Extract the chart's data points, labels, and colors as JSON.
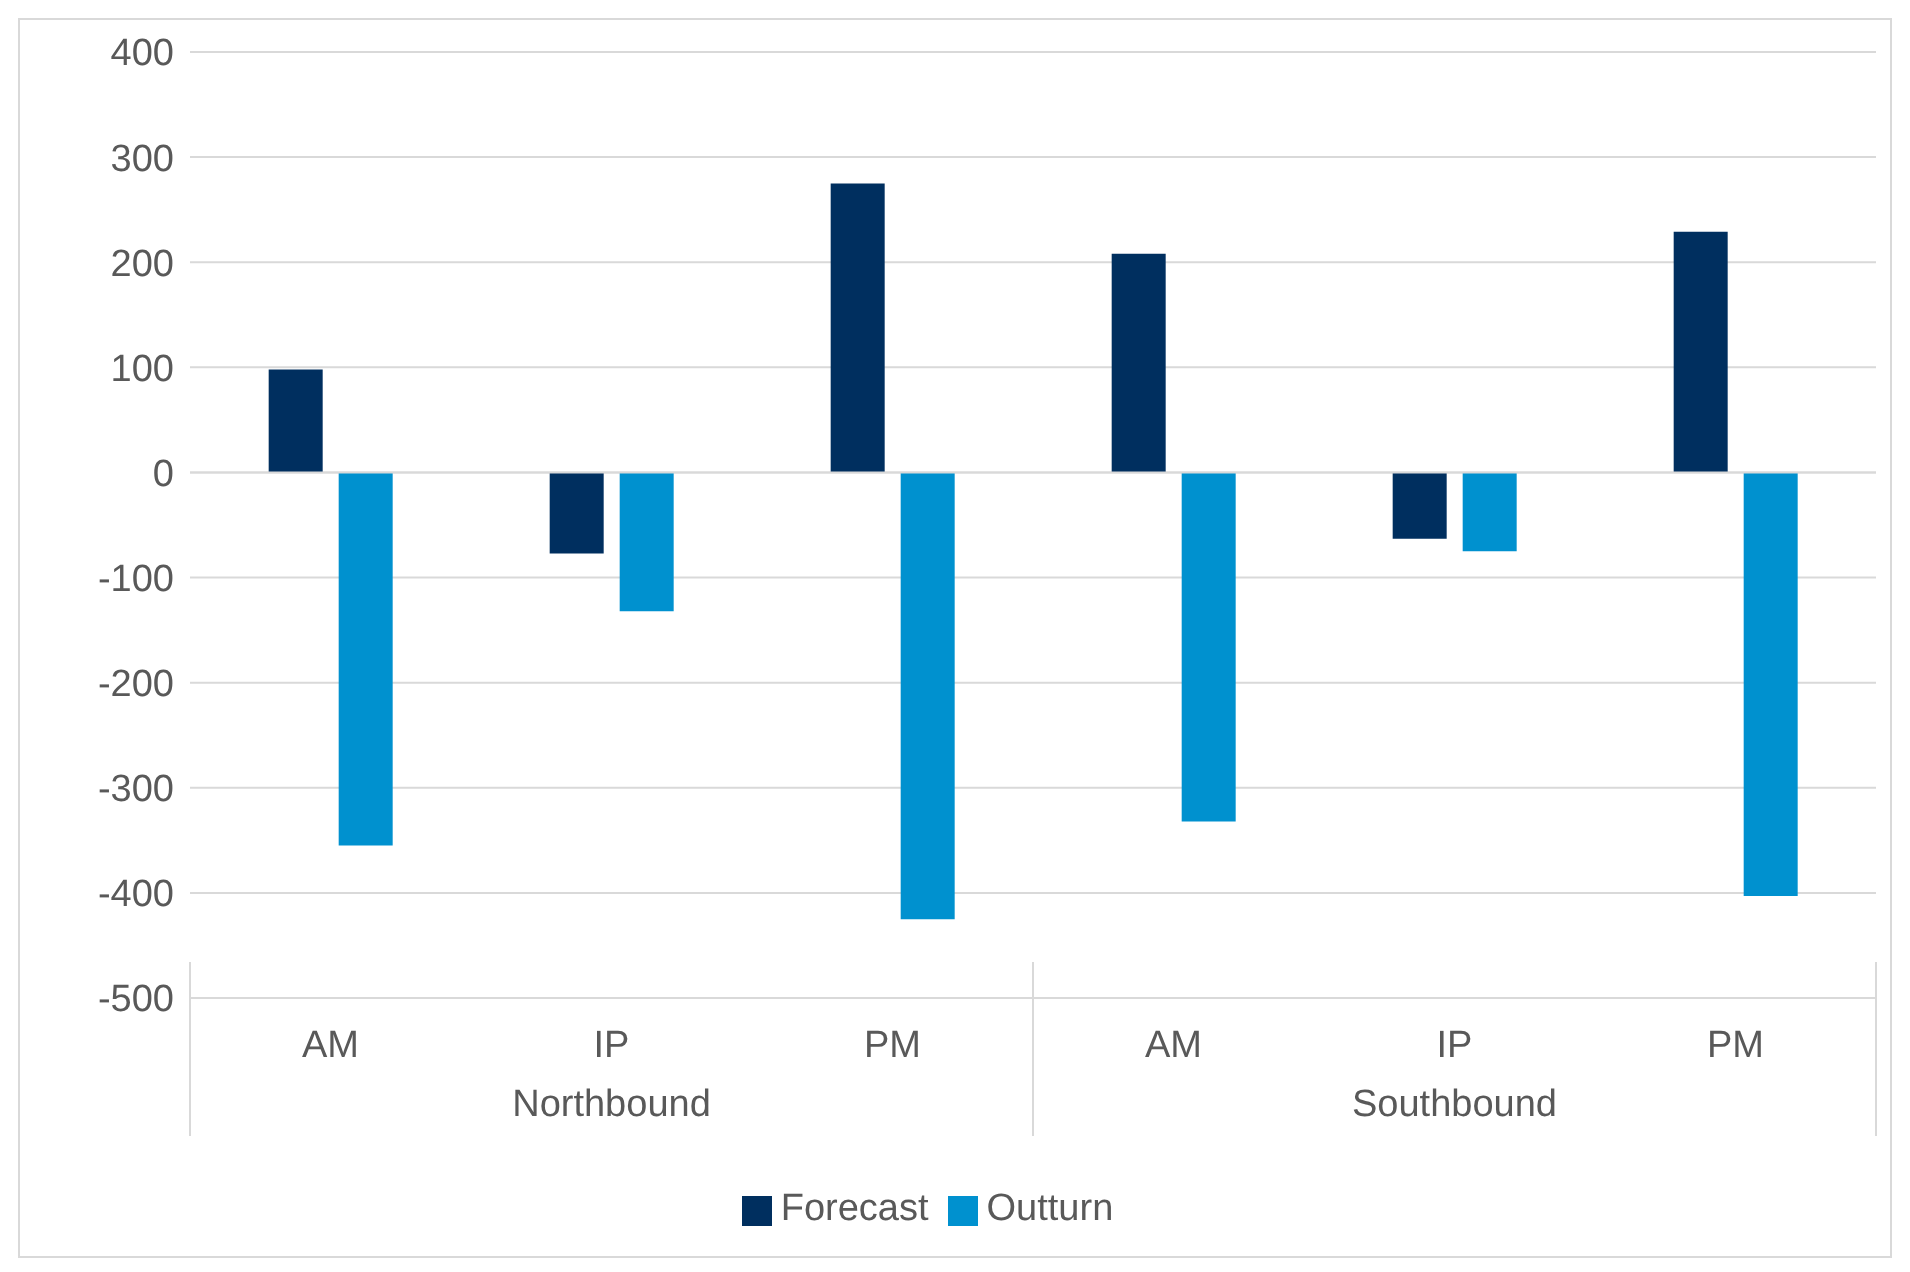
{
  "chart_data": {
    "type": "bar",
    "categories": [
      "AM",
      "IP",
      "PM",
      "AM",
      "IP",
      "PM"
    ],
    "annotations": [
      "Northbound",
      "Southbound"
    ],
    "series": [
      {
        "name": "Forecast",
        "color": "#002f5f",
        "values": [
          98,
          -77,
          275,
          208,
          -63,
          229
        ]
      },
      {
        "name": "Outturn",
        "color": "#0091cf",
        "values": [
          -355,
          -132,
          -425,
          -332,
          -75,
          -403
        ]
      }
    ],
    "ylim": [
      -500,
      400
    ],
    "yticks": [
      -500,
      -400,
      -300,
      -200,
      -100,
      0,
      100,
      200,
      300,
      400
    ],
    "grid": "y",
    "legend": "bottom"
  }
}
